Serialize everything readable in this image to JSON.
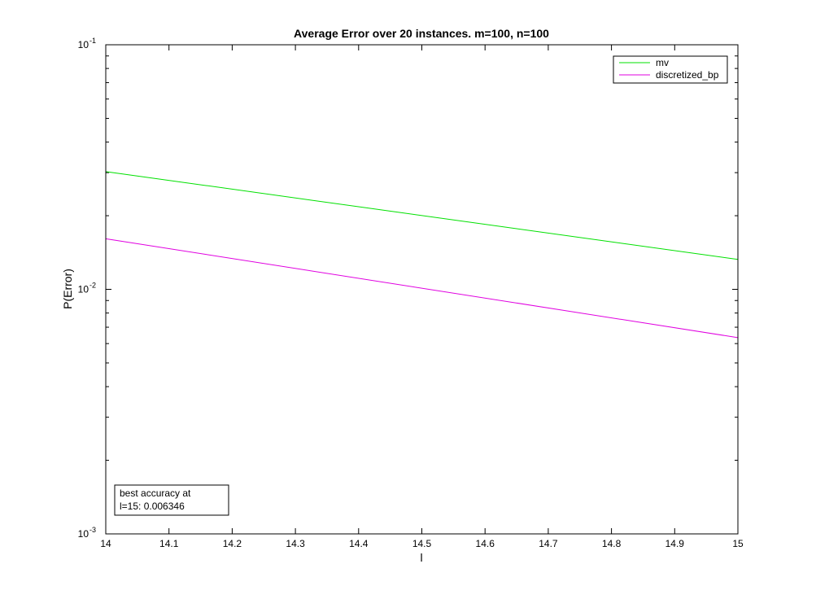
{
  "chart_data": {
    "type": "line",
    "title": "Average Error over 20 instances. m=100, n=100",
    "xlabel": "l",
    "ylabel": "P(Error)",
    "xlim": [
      14,
      15
    ],
    "ylim": [
      0.001,
      0.1
    ],
    "yscale": "log",
    "x_ticks": [
      "14",
      "14.1",
      "14.2",
      "14.3",
      "14.4",
      "14.5",
      "14.6",
      "14.7",
      "14.8",
      "14.9",
      "15"
    ],
    "y_ticks": [
      {
        "value": 0.1,
        "base": "10",
        "exp": "-1"
      },
      {
        "value": 0.01,
        "base": "10",
        "exp": "-2"
      },
      {
        "value": 0.001,
        "base": "10",
        "exp": "-3"
      }
    ],
    "grid": false,
    "legend_position": "top-right",
    "series": [
      {
        "name": "mv",
        "color": "#00e000",
        "x": [
          14,
          15
        ],
        "y": [
          0.0303,
          0.01325
        ]
      },
      {
        "name": "discretized_bp",
        "color": "#e000e0",
        "x": [
          14,
          15
        ],
        "y": [
          0.0161,
          0.006346
        ]
      }
    ],
    "annotation": {
      "lines": [
        "best accuracy at",
        "l=15: 0.006346"
      ],
      "position": "bottom-left"
    }
  }
}
